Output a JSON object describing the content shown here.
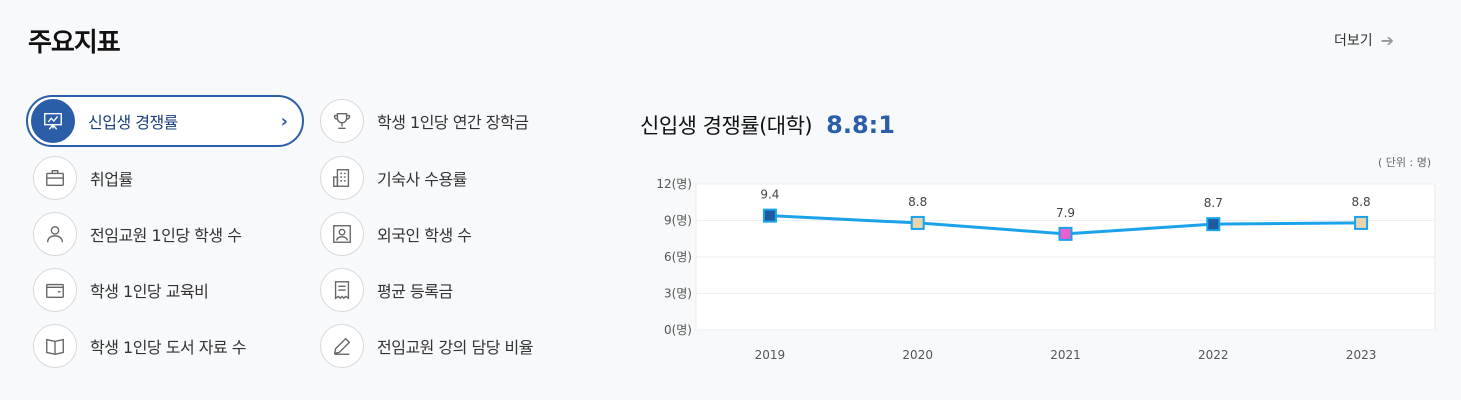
{
  "header": {
    "title": "주요지표",
    "more_label": "더보기",
    "more_icon": "arrow-right-icon"
  },
  "menu": {
    "left": [
      {
        "label": "신입생 경쟁률",
        "icon": "presentation-board-icon",
        "active": true
      },
      {
        "label": "취업률",
        "icon": "briefcase-icon"
      },
      {
        "label": "전임교원 1인당 학생 수",
        "icon": "user-icon"
      },
      {
        "label": "학생 1인당 교육비",
        "icon": "wallet-icon"
      },
      {
        "label": "학생 1인당 도서 자료 수",
        "icon": "book-icon"
      }
    ],
    "right": [
      {
        "label": "학생 1인당 연간 장학금",
        "icon": "trophy-icon"
      },
      {
        "label": "기숙사 수용률",
        "icon": "building-icon"
      },
      {
        "label": "외국인 학생 수",
        "icon": "id-card-icon"
      },
      {
        "label": "평균 등록금",
        "icon": "receipt-icon"
      },
      {
        "label": "전임교원 강의 담당 비율",
        "icon": "pencil-icon"
      }
    ]
  },
  "chart_header": {
    "title": "신입생 경쟁률(대학)",
    "highlight": "8.8:1",
    "unit": "( 단위 : 명)"
  },
  "chart_data": {
    "type": "line",
    "x": [
      "2019",
      "2020",
      "2021",
      "2022",
      "2023"
    ],
    "y_tick_labels": [
      "12(명)",
      "9(명)",
      "6(명)",
      "3(명)",
      "0(명)"
    ],
    "ylim": [
      0,
      12
    ],
    "series": [
      {
        "values": [
          9.4,
          8.8,
          7.9,
          8.7,
          8.8
        ],
        "color": "#1aa3e8"
      }
    ],
    "data_labels": [
      "9.4",
      "8.8",
      "7.9",
      "8.7",
      "8.8"
    ],
    "marker_colors": [
      "#1d5a9e",
      "#e8d5b0",
      "#e85fd0",
      "#1d5a9e",
      "#e8d5b0"
    ],
    "grid": true
  }
}
